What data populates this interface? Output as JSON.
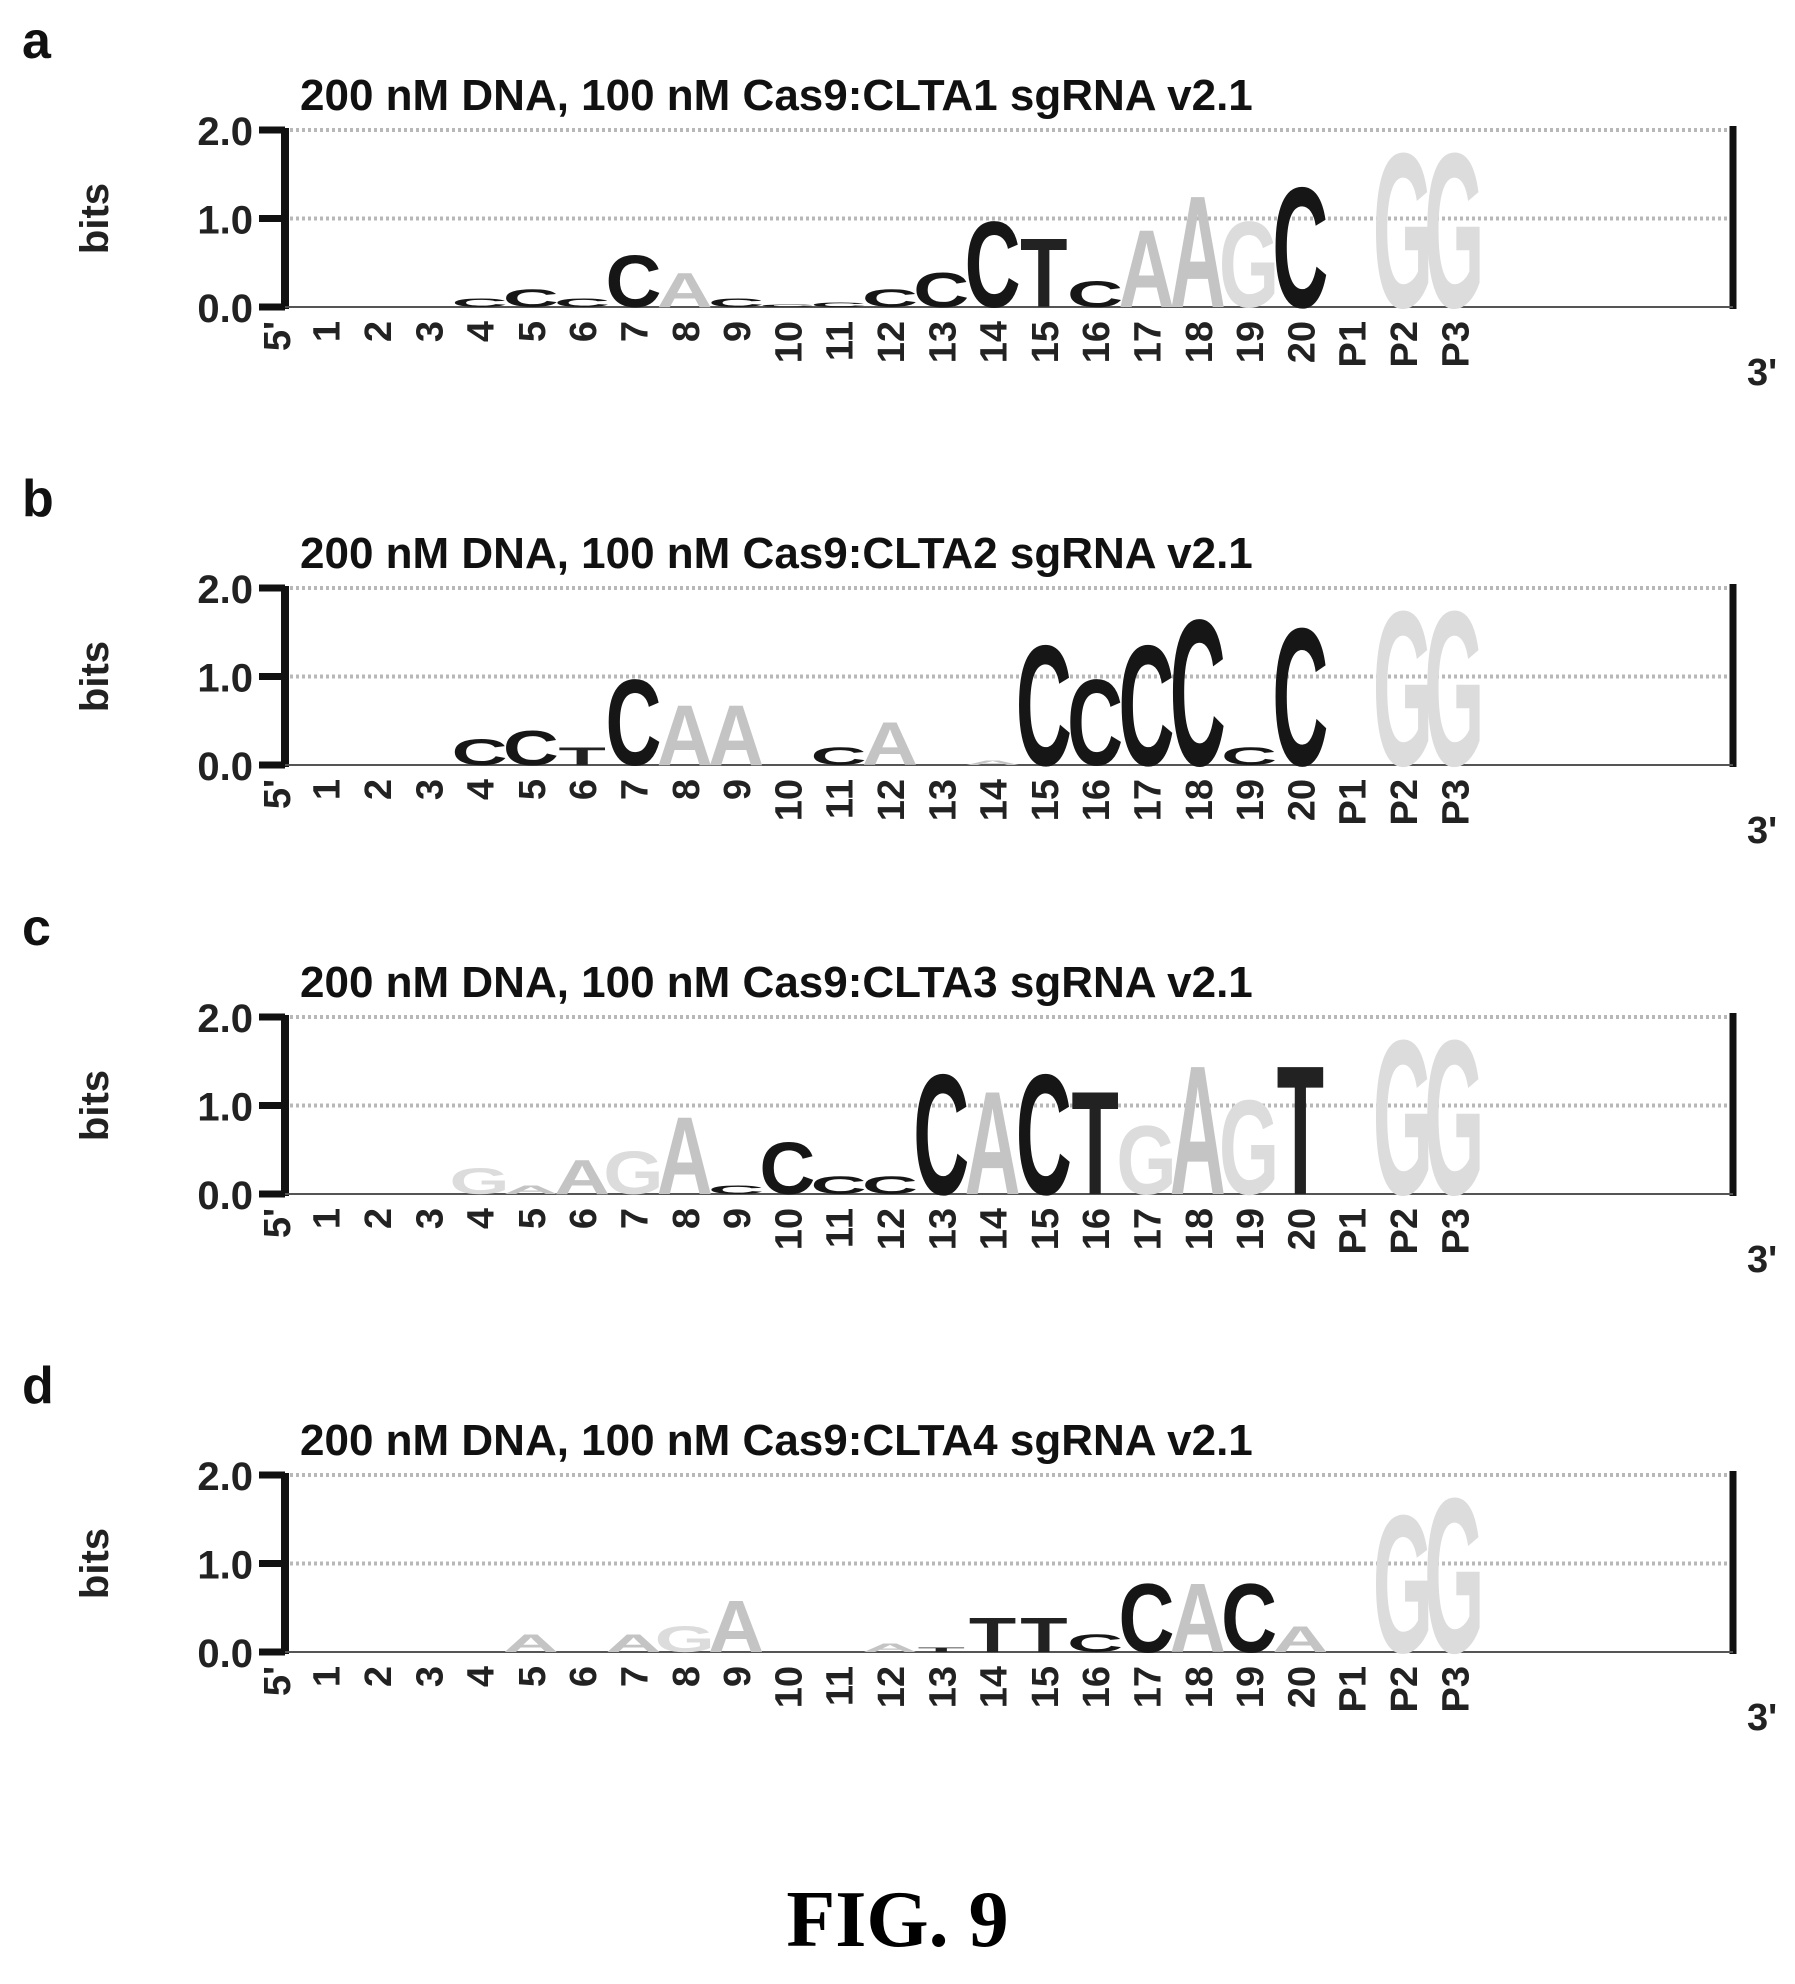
{
  "figure": {
    "caption": "FIG. 9"
  },
  "chart_data": [
    {
      "panel": "a",
      "type": "sequence-logo",
      "title": "200 nM DNA, 100 nM Cas9:CLTA1 sgRNA v2.1",
      "ylabel": "bits",
      "ylim": [
        0,
        2
      ],
      "yticks": [
        "0.0",
        "1.0",
        "2.0"
      ],
      "end_labels": [
        "5'",
        "3'"
      ],
      "positions": [
        "1",
        "2",
        "3",
        "4",
        "5",
        "6",
        "7",
        "8",
        "9",
        "10",
        "11",
        "12",
        "13",
        "14",
        "15",
        "16",
        "17",
        "18",
        "19",
        "20",
        "P1",
        "P2",
        "P3"
      ],
      "stacks": [
        [],
        [],
        [],
        [
          {
            "base": "C",
            "bits": 0.1
          }
        ],
        [
          {
            "base": "C",
            "bits": 0.2
          }
        ],
        [
          {
            "base": "C",
            "bits": 0.1
          }
        ],
        [
          {
            "base": "C",
            "bits": 0.6
          }
        ],
        [
          {
            "base": "A",
            "bits": 0.4
          }
        ],
        [
          {
            "base": "C",
            "bits": 0.1
          }
        ],
        [
          {
            "base": "C",
            "bits": 0.03
          }
        ],
        [
          {
            "base": "C",
            "bits": 0.05
          }
        ],
        [
          {
            "base": "C",
            "bits": 0.2
          }
        ],
        [
          {
            "base": "C",
            "bits": 0.4
          }
        ],
        [
          {
            "base": "C",
            "bits": 1.0
          }
        ],
        [
          {
            "base": "T",
            "bits": 0.8
          }
        ],
        [
          {
            "base": "C",
            "bits": 0.3
          }
        ],
        [
          {
            "base": "A",
            "bits": 0.9
          }
        ],
        [
          {
            "base": "A",
            "bits": 1.3
          }
        ],
        [
          {
            "base": "G",
            "bits": 1.0
          }
        ],
        [
          {
            "base": "C",
            "bits": 1.4
          }
        ],
        [],
        [
          {
            "base": "G",
            "bits": 1.8
          }
        ],
        [
          {
            "base": "G",
            "bits": 1.8
          }
        ]
      ]
    },
    {
      "panel": "b",
      "type": "sequence-logo",
      "title": "200 nM DNA, 100 nM Cas9:CLTA2 sgRNA v2.1",
      "ylabel": "bits",
      "ylim": [
        0,
        2
      ],
      "yticks": [
        "0.0",
        "1.0",
        "2.0"
      ],
      "end_labels": [
        "5'",
        "3'"
      ],
      "positions": [
        "1",
        "2",
        "3",
        "4",
        "5",
        "6",
        "7",
        "8",
        "9",
        "10",
        "11",
        "12",
        "13",
        "14",
        "15",
        "16",
        "17",
        "18",
        "19",
        "20",
        "P1",
        "P2",
        "P3"
      ],
      "stacks": [
        [],
        [],
        [],
        [
          {
            "base": "C",
            "bits": 0.3
          }
        ],
        [
          {
            "base": "C",
            "bits": 0.4
          }
        ],
        [
          {
            "base": "T",
            "bits": 0.2
          }
        ],
        [
          {
            "base": "C",
            "bits": 1.0
          }
        ],
        [
          {
            "base": "A",
            "bits": 0.7
          }
        ],
        [
          {
            "base": "A",
            "bits": 0.7
          }
        ],
        [],
        [
          {
            "base": "C",
            "bits": 0.2
          }
        ],
        [
          {
            "base": "A",
            "bits": 0.5
          }
        ],
        [],
        [
          {
            "base": "A",
            "bits": 0.05
          }
        ],
        [
          {
            "base": "C",
            "bits": 1.4
          }
        ],
        [
          {
            "base": "C",
            "bits": 1.0
          }
        ],
        [
          {
            "base": "C",
            "bits": 1.4
          }
        ],
        [
          {
            "base": "C",
            "bits": 1.7
          }
        ],
        [
          {
            "base": "C",
            "bits": 0.2
          }
        ],
        [
          {
            "base": "C",
            "bits": 1.6
          }
        ],
        [],
        [
          {
            "base": "G",
            "bits": 1.8
          }
        ],
        [
          {
            "base": "G",
            "bits": 1.8
          }
        ]
      ]
    },
    {
      "panel": "c",
      "type": "sequence-logo",
      "title": "200 nM DNA, 100 nM Cas9:CLTA3 sgRNA v2.1",
      "ylabel": "bits",
      "ylim": [
        0,
        2
      ],
      "yticks": [
        "0.0",
        "1.0",
        "2.0"
      ],
      "end_labels": [
        "5'",
        "3'"
      ],
      "positions": [
        "1",
        "2",
        "3",
        "4",
        "5",
        "6",
        "7",
        "8",
        "9",
        "10",
        "11",
        "12",
        "13",
        "14",
        "15",
        "16",
        "17",
        "18",
        "19",
        "20",
        "P1",
        "P2",
        "P3"
      ],
      "stacks": [
        [],
        [],
        [],
        [
          {
            "base": "G",
            "bits": 0.3
          }
        ],
        [
          {
            "base": "A",
            "bits": 0.1
          }
        ],
        [
          {
            "base": "A",
            "bits": 0.4
          }
        ],
        [
          {
            "base": "G",
            "bits": 0.5
          }
        ],
        [
          {
            "base": "A",
            "bits": 0.9
          }
        ],
        [
          {
            "base": "C",
            "bits": 0.1
          }
        ],
        [
          {
            "base": "C",
            "bits": 0.6
          }
        ],
        [
          {
            "base": "C",
            "bits": 0.2
          }
        ],
        [
          {
            "base": "C",
            "bits": 0.2
          }
        ],
        [
          {
            "base": "C",
            "bits": 1.4
          }
        ],
        [
          {
            "base": "A",
            "bits": 1.2
          }
        ],
        [
          {
            "base": "C",
            "bits": 1.4
          }
        ],
        [
          {
            "base": "T",
            "bits": 1.2
          }
        ],
        [
          {
            "base": "G",
            "bits": 0.8
          }
        ],
        [
          {
            "base": "A",
            "bits": 1.5
          }
        ],
        [
          {
            "base": "G",
            "bits": 1.1
          }
        ],
        [
          {
            "base": "T",
            "bits": 1.5
          }
        ],
        [],
        [
          {
            "base": "G",
            "bits": 1.8
          }
        ],
        [
          {
            "base": "G",
            "bits": 1.8
          }
        ]
      ]
    },
    {
      "panel": "d",
      "type": "sequence-logo",
      "title": "200 nM DNA, 100 nM Cas9:CLTA4 sgRNA v2.1",
      "ylabel": "bits",
      "ylim": [
        0,
        2
      ],
      "yticks": [
        "0.0",
        "1.0",
        "2.0"
      ],
      "end_labels": [
        "5'",
        "3'"
      ],
      "positions": [
        "1",
        "2",
        "3",
        "4",
        "5",
        "6",
        "7",
        "8",
        "9",
        "10",
        "11",
        "12",
        "13",
        "14",
        "15",
        "16",
        "17",
        "18",
        "19",
        "20",
        "P1",
        "P2",
        "P3"
      ],
      "stacks": [
        [],
        [],
        [],
        [],
        [
          {
            "base": "A",
            "bits": 0.2
          }
        ],
        [],
        [
          {
            "base": "A",
            "bits": 0.2
          }
        ],
        [
          {
            "base": "G",
            "bits": 0.3
          }
        ],
        [
          {
            "base": "A",
            "bits": 0.6
          }
        ],
        [],
        [],
        [
          {
            "base": "A",
            "bits": 0.1
          }
        ],
        [
          {
            "base": "T",
            "bits": 0.05
          }
        ],
        [
          {
            "base": "T",
            "bits": 0.4
          }
        ],
        [
          {
            "base": "T",
            "bits": 0.4
          }
        ],
        [
          {
            "base": "C",
            "bits": 0.2
          }
        ],
        [
          {
            "base": "C",
            "bits": 0.8
          }
        ],
        [
          {
            "base": "A",
            "bits": 0.8
          }
        ],
        [
          {
            "base": "C",
            "bits": 0.8
          }
        ],
        [
          {
            "base": "A",
            "bits": 0.3
          }
        ],
        [],
        [
          {
            "base": "G",
            "bits": 1.6
          }
        ],
        [
          {
            "base": "G",
            "bits": 1.8
          }
        ]
      ]
    }
  ]
}
